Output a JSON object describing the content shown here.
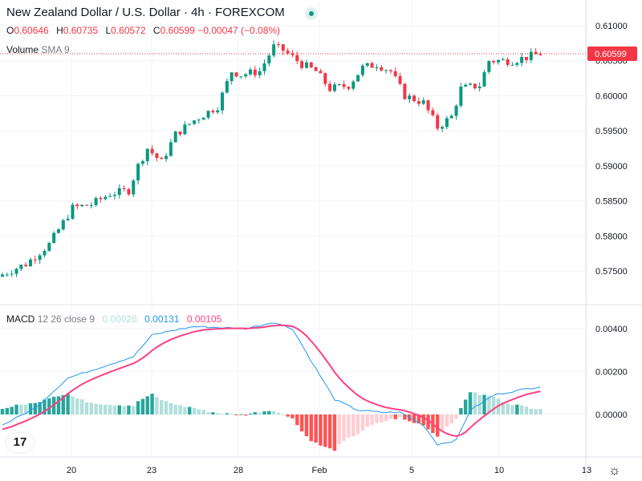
{
  "header": {
    "title": "New Zealand Dollar / U.S. Dollar · 4h · FOREXCOM",
    "o_label": "O",
    "o": "0.60646",
    "h_label": "H",
    "h": "0.60735",
    "l_label": "L",
    "l": "0.60572",
    "c_label": "C",
    "c": "0.60599",
    "change": "−0.00047 (−0.08%)"
  },
  "volume": {
    "label": "Volume",
    "params": "SMA 9"
  },
  "macd_legend": {
    "label": "MACD",
    "params": "12 26 close 9",
    "hist": "0.00026",
    "macd": "0.00131",
    "signal": "0.00105"
  },
  "colors": {
    "up": "#089981",
    "down": "#f23645",
    "macd": "#2196f3",
    "signal": "#ff4081"
  },
  "chart_data": {
    "type": "candlestick",
    "price_axis": {
      "ticks": [
        "0.61000",
        "0.60500",
        "0.60000",
        "0.59500",
        "0.59000",
        "0.58500",
        "0.58000",
        "0.57500"
      ],
      "range": [
        0.5705,
        0.6125
      ]
    },
    "last_price": "0.60599",
    "macd_axis": {
      "ticks": [
        "0.00400",
        "0.00200",
        "0.00000"
      ]
    },
    "time_ticks": [
      "20",
      "23",
      "28",
      "Feb",
      "5",
      "10",
      "13"
    ],
    "close_keypoints": [
      [
        0,
        0.5745
      ],
      [
        5,
        0.576
      ],
      [
        10,
        0.5788
      ],
      [
        15,
        0.584
      ],
      [
        19,
        0.5845
      ],
      [
        23,
        0.586
      ],
      [
        27,
        0.5865
      ],
      [
        29,
        0.59
      ],
      [
        31,
        0.5925
      ],
      [
        34,
        0.5905
      ],
      [
        37,
        0.5945
      ],
      [
        41,
        0.5965
      ],
      [
        46,
        0.5985
      ],
      [
        49,
        0.6035
      ],
      [
        51,
        0.603
      ],
      [
        55,
        0.6035
      ],
      [
        58,
        0.607
      ],
      [
        60,
        0.6065
      ],
      [
        64,
        0.6045
      ],
      [
        67,
        0.6035
      ],
      [
        70,
        0.601
      ],
      [
        74,
        0.6015
      ],
      [
        77,
        0.604
      ],
      [
        80,
        0.6045
      ],
      [
        83,
        0.6035
      ],
      [
        86,
        0.6
      ],
      [
        90,
        0.599
      ],
      [
        93,
        0.5955
      ],
      [
        96,
        0.597
      ],
      [
        98,
        0.601
      ],
      [
        102,
        0.6015
      ],
      [
        104,
        0.605
      ],
      [
        109,
        0.605
      ],
      [
        115,
        0.606
      ]
    ],
    "macd_keypoints": [
      [
        0,
        -0.0005
      ],
      [
        7,
        0.0003
      ],
      [
        14,
        0.0017
      ],
      [
        21,
        0.0022
      ],
      [
        28,
        0.0027
      ],
      [
        32,
        0.0037
      ],
      [
        36,
        0.0039
      ],
      [
        41,
        0.0041
      ],
      [
        52,
        0.004
      ],
      [
        58,
        0.0043
      ],
      [
        62,
        0.004
      ],
      [
        66,
        0.0025
      ],
      [
        71,
        0.0007
      ],
      [
        76,
        0.0002
      ],
      [
        81,
        0.0001
      ],
      [
        85,
        0.0001
      ],
      [
        90,
        -0.0005
      ],
      [
        93,
        -0.0014
      ],
      [
        97,
        -0.0012
      ],
      [
        100,
        0.0002
      ],
      [
        105,
        0.0009
      ],
      [
        112,
        0.0012
      ],
      [
        115,
        0.0013
      ]
    ]
  }
}
